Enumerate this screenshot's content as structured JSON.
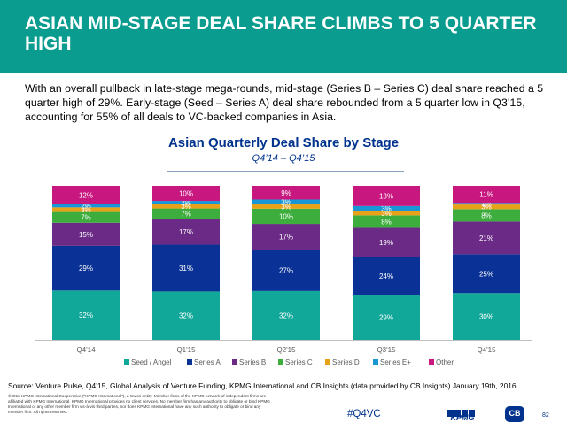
{
  "header": {
    "title": "ASIAN MID-STAGE DEAL SHARE CLIMBS TO 5 QUARTER HIGH"
  },
  "intro": "With an overall pullback in late-stage mega-rounds, mid-stage (Series B – Series C) deal share reached a 5 quarter high of 29%. Early-stage (Seed – Series A) deal share rebounded from a 5 quarter low in Q3’15, accounting for 55% of all deals to VC-backed companies in Asia.",
  "chart_data": {
    "type": "bar",
    "stacked": true,
    "normalized_percent": true,
    "title": "Asian Quarterly Deal Share by Stage",
    "subtitle": "Q4’14 – Q4’15",
    "categories": [
      "Q4'14",
      "Q1'15",
      "Q2'15",
      "Q3'15",
      "Q4'15"
    ],
    "series": [
      {
        "name": "Seed / Angel",
        "color": "#12A899",
        "values": [
          32,
          32,
          32,
          29,
          30
        ]
      },
      {
        "name": "Series A",
        "color": "#0A3296",
        "values": [
          29,
          31,
          27,
          24,
          25
        ]
      },
      {
        "name": "Series B",
        "color": "#6A2A86",
        "values": [
          15,
          17,
          17,
          19,
          21
        ]
      },
      {
        "name": "Series C",
        "color": "#3DAE3D",
        "values": [
          7,
          7,
          10,
          8,
          8
        ]
      },
      {
        "name": "Series D",
        "color": "#E8A21A",
        "values": [
          3,
          3,
          3,
          3,
          3
        ]
      },
      {
        "name": "Series E+",
        "color": "#1896D6",
        "values": [
          2,
          2,
          3,
          3,
          1
        ]
      },
      {
        "name": "Other",
        "color": "#C8177F",
        "values": [
          12,
          10,
          9,
          13,
          11
        ]
      }
    ],
    "ylim": [
      0,
      100
    ],
    "grid": false,
    "legend_position": "bottom"
  },
  "footer": {
    "source": "Source: Venture Pulse, Q4’15, Global Analysis of Venture Funding, KPMG International and CB Insights (data provided by CB Insights) January 19th, 2016",
    "fine_print": "©2016 KPMG International Cooperative (\"KPMG International\"), a Swiss entity. Member firms of the KPMG network of independent firms are affiliated with KPMG International. KPMG International provides no client services. No member firm has any authority to obligate or bind KPMG International or any other member firm vis-à-vis third parties, nor does KPMG International have any such authority to obligate or bind any member firm. All rights reserved.",
    "hashtag": "#Q4VC",
    "kpmg_logo": "KPMG",
    "cb_logo": "CB",
    "page_number": "82"
  }
}
